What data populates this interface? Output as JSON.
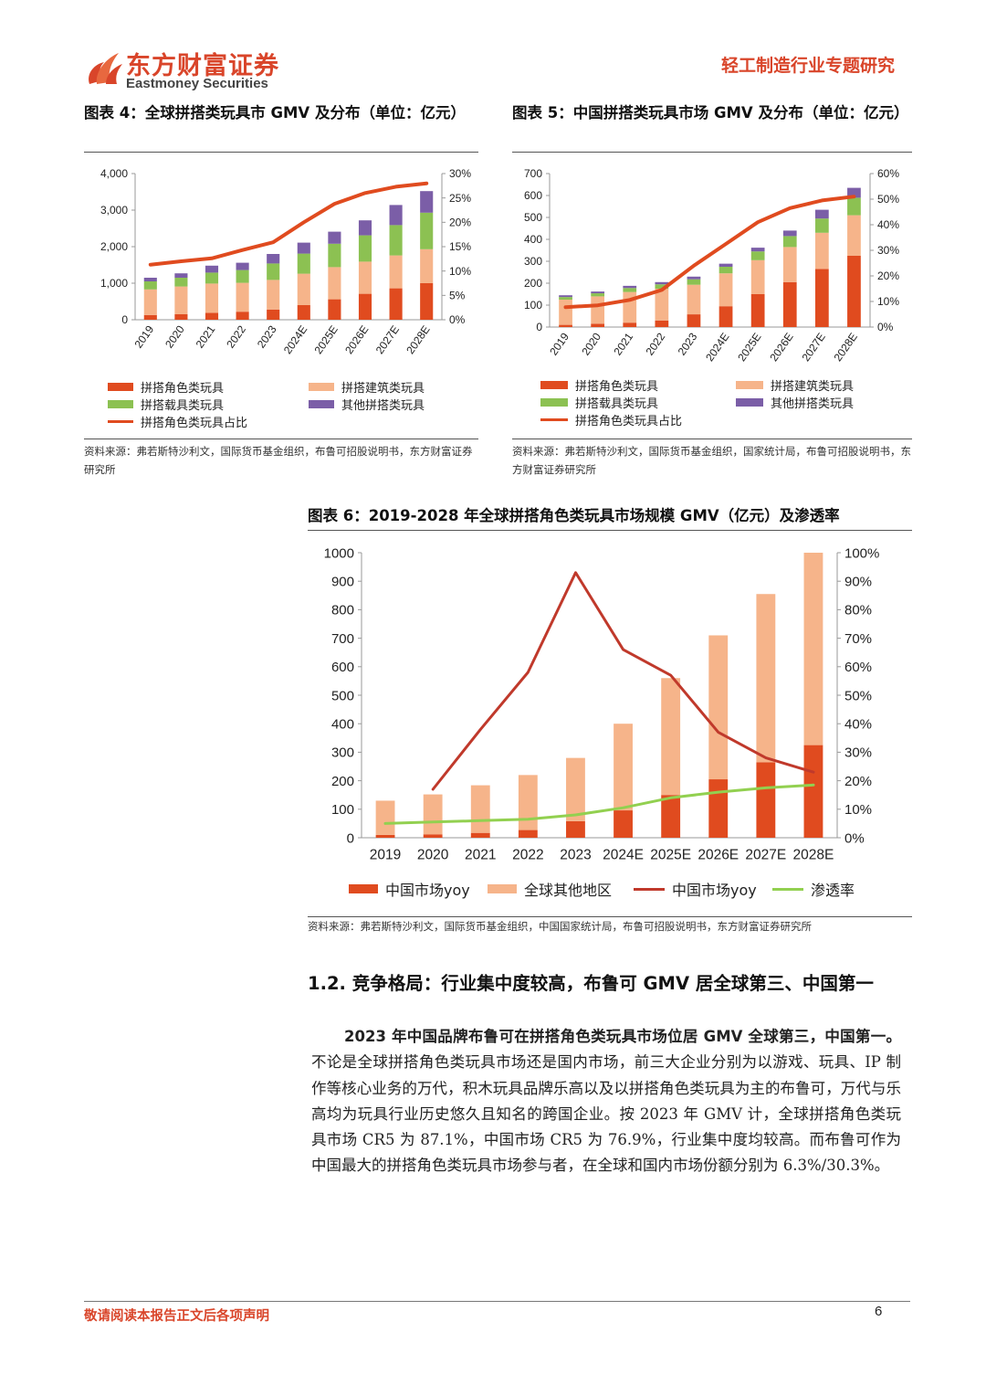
{
  "header": {
    "logo_cn": "东方财富证券",
    "logo_en": "Eastmoney Securities",
    "report_type": "轻工制造行业专题研究",
    "brand_color": "#d9452a"
  },
  "fig4": {
    "title": "图表 4：全球拼搭类玩具市 GMV 及分布（单位：亿元）",
    "source": "资料来源：弗若斯特沙利文，国际货币基金组织，布鲁可招股说明书，东方财富证券研究所"
  },
  "fig5": {
    "title": "图表 5：中国拼搭类玩具市场 GMV 及分布（单位：亿元）",
    "source": "资料来源：弗若斯特沙利文，国际货币基金组织，国家统计局，布鲁可招股说明书，东方财富证券研究所"
  },
  "fig6": {
    "title": "图表 6：2019-2028 年全球拼搭角色类玩具市场规模 GMV（亿元）及渗透率",
    "source": "资料来源：弗若斯特沙利文，国际货币基金组织，中国国家统计局，布鲁可招股说明书，东方财富证券研究所"
  },
  "section": {
    "heading": "1.2. 竞争格局：行业集中度较高，布鲁可 GMV 居全球第三、中国第一",
    "para_bold": "2023 年中国品牌布鲁可在拼搭角色类玩具市场位居 GMV 全球第三，中国第一。",
    "para_rest": "不论是全球拼搭角色类玩具市场还是国内市场，前三大企业分别为以游戏、玩具、IP 制作等核心业务的万代，积木玩具品牌乐高以及以拼搭角色类玩具为主的布鲁可，万代与乐高均为玩具行业历史悠久且知名的跨国企业。按 2023 年 GMV 计，全球拼搭角色类玩具市场 CR5 为 87.1%，中国市场 CR5 为 76.9%，行业集中度均较高。而布鲁可作为中国最大的拼搭角色类玩具市场参与者，在全球和国内市场份额分别为 6.3%/30.3%。"
  },
  "footer": {
    "disclaimer": "敬请阅读本报告正文后各项声明",
    "page": "6"
  },
  "chart_data": [
    {
      "id": "fig4",
      "type": "bar",
      "stacked": true,
      "categories": [
        "2019",
        "2020",
        "2021",
        "2022",
        "2023",
        "2024E",
        "2025E",
        "2026E",
        "2027E",
        "2028E"
      ],
      "ylim": [
        0,
        4000
      ],
      "y_ticks": [
        "0",
        "1,000",
        "2,000",
        "3,000",
        "4,000"
      ],
      "y2lim": [
        0,
        30
      ],
      "y2_ticks": [
        "0%",
        "5%",
        "10%",
        "15%",
        "20%",
        "25%",
        "30%"
      ],
      "series": [
        {
          "name": "拼搭角色类玩具",
          "color": "#e04b1f",
          "values": [
            130,
            150,
            190,
            220,
            280,
            400,
            560,
            710,
            860,
            1000
          ]
        },
        {
          "name": "拼搭建筑类玩具",
          "color": "#f6b48a",
          "values": [
            700,
            760,
            800,
            790,
            810,
            860,
            880,
            880,
            900,
            930
          ]
        },
        {
          "name": "拼搭载具类玩具",
          "color": "#8cc152",
          "values": [
            220,
            240,
            300,
            350,
            450,
            550,
            640,
            720,
            830,
            1000
          ]
        },
        {
          "name": "其他拼搭类玩具",
          "color": "#7b5ea7",
          "values": [
            100,
            120,
            190,
            200,
            260,
            300,
            330,
            410,
            550,
            590
          ]
        }
      ],
      "line": {
        "name": "拼搭角色类玩具占比",
        "color": "#e04b1f",
        "values": [
          11.3,
          12.0,
          12.6,
          14.3,
          15.9,
          20.0,
          23.8,
          26.0,
          27.3,
          28.0
        ]
      }
    },
    {
      "id": "fig5",
      "type": "bar",
      "stacked": true,
      "categories": [
        "2019",
        "2020",
        "2021",
        "2022",
        "2023",
        "2024E",
        "2025E",
        "2026E",
        "2027E",
        "2028E"
      ],
      "ylim": [
        0,
        700
      ],
      "y_ticks": [
        "0",
        "100",
        "200",
        "300",
        "400",
        "500",
        "600",
        "700"
      ],
      "y2lim": [
        0,
        60
      ],
      "y2_ticks": [
        "0%",
        "10%",
        "20%",
        "30%",
        "40%",
        "50%",
        "60%"
      ],
      "series": [
        {
          "name": "拼搭角色类玩具",
          "color": "#e04b1f",
          "values": [
            10,
            15,
            20,
            30,
            58,
            95,
            150,
            205,
            265,
            325
          ]
        },
        {
          "name": "拼搭建筑类玩具",
          "color": "#f6b48a",
          "values": [
            115,
            125,
            140,
            145,
            135,
            150,
            155,
            160,
            165,
            185
          ]
        },
        {
          "name": "拼搭载具类玩具",
          "color": "#8cc152",
          "values": [
            12,
            14,
            18,
            20,
            25,
            30,
            40,
            50,
            65,
            80
          ]
        },
        {
          "name": "其他拼搭类玩具",
          "color": "#7b5ea7",
          "values": [
            8,
            8,
            10,
            10,
            12,
            14,
            17,
            25,
            40,
            45
          ]
        }
      ],
      "line": {
        "name": "拼搭角色类玩具占比",
        "color": "#e04b1f",
        "values": [
          7.8,
          8.5,
          10.6,
          14.5,
          24.0,
          32.5,
          41.0,
          46.5,
          49.5,
          51.0
        ]
      }
    },
    {
      "id": "fig6",
      "type": "bar",
      "stacked": true,
      "categories": [
        "2019",
        "2020",
        "2021",
        "2022",
        "2023",
        "2024E",
        "2025E",
        "2026E",
        "2027E",
        "2028E"
      ],
      "ylim": [
        0,
        1000
      ],
      "y_ticks": [
        "0",
        "100",
        "200",
        "300",
        "400",
        "500",
        "600",
        "700",
        "800",
        "900",
        "1000"
      ],
      "y2lim": [
        0,
        100
      ],
      "y2_ticks": [
        "0%",
        "10%",
        "20%",
        "30%",
        "40%",
        "50%",
        "60%",
        "70%",
        "80%",
        "90%",
        "100%"
      ],
      "series": [
        {
          "name": "中国市场yoy",
          "color": "#e04b1f",
          "values": [
            10,
            12,
            17,
            27,
            58,
            96,
            150,
            205,
            265,
            325
          ]
        },
        {
          "name": "全球其他地区",
          "color": "#f6b48a",
          "values": [
            120,
            140,
            167,
            193,
            222,
            304,
            410,
            505,
            590,
            675
          ]
        }
      ],
      "lines": [
        {
          "name": "中国市场yoy",
          "color": "#c0392b",
          "values": [
            null,
            17,
            38,
            58,
            93,
            66,
            57,
            37,
            28,
            23
          ]
        },
        {
          "name": "渗透率",
          "color": "#92d050",
          "values": [
            5,
            5.5,
            6,
            6.5,
            8,
            10.5,
            14,
            16,
            17.5,
            18.5
          ]
        }
      ]
    }
  ]
}
